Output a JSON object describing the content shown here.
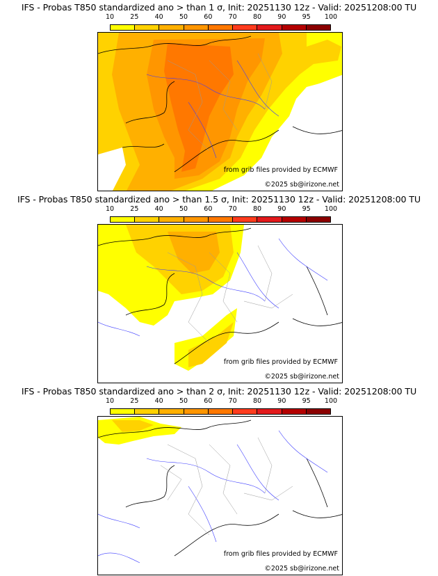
{
  "colorbar": {
    "ticks": [
      "10",
      "25",
      "40",
      "50",
      "60",
      "70",
      "80",
      "90",
      "95",
      "100"
    ],
    "colors": [
      "#ffff00",
      "#ffd200",
      "#ffb000",
      "#ff9600",
      "#ff7800",
      "#ff3c1e",
      "#e31a1c",
      "#b40000",
      "#8b0000"
    ]
  },
  "panels": [
    {
      "title": "IFS - Probas T850  standardized ano > than 1 σ, Init: 20251130 12z - Valid: 20251208:00 TU",
      "credit_line1": "from grib files provided by ECMWF",
      "credit_line2": "©2025 sb@irizone.net",
      "coverage": "high"
    },
    {
      "title": "IFS - Probas T850  standardized ano > than 1.5 σ, Init: 20251130 12z - Valid: 20251208:00 TU",
      "credit_line1": "from grib files provided by ECMWF",
      "credit_line2": "©2025 sb@irizone.net",
      "coverage": "medium"
    },
    {
      "title": "IFS - Probas T850  standardized ano > than 2 σ, Init: 20251130 12z - Valid: 20251208:00 TU",
      "credit_line1": "from grib files provided by ECMWF",
      "credit_line2": "©2025 sb@irizone.net",
      "coverage": "low"
    }
  ]
}
